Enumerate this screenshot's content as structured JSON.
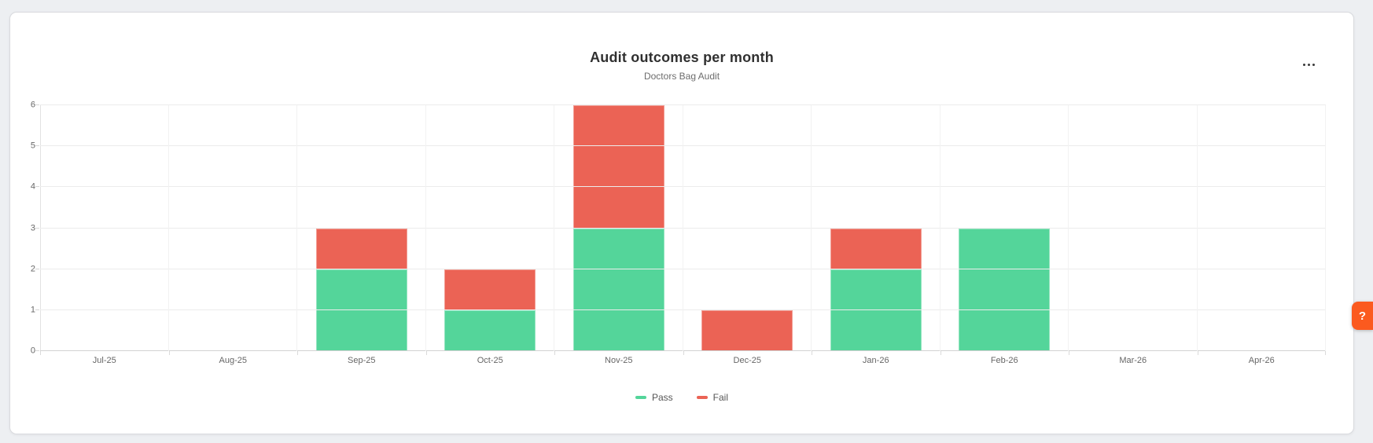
{
  "card": {
    "menu_icon": "ellipsis-horizontal-icon"
  },
  "help_button": {
    "label": "?",
    "color": "#fb5a1f"
  },
  "chart_data": {
    "type": "bar",
    "stacked": true,
    "title": "Audit outcomes per month",
    "subtitle": "Doctors Bag Audit",
    "categories": [
      "Jul-25",
      "Aug-25",
      "Sep-25",
      "Oct-25",
      "Nov-25",
      "Dec-25",
      "Jan-26",
      "Feb-26",
      "Mar-26",
      "Apr-26"
    ],
    "series": [
      {
        "name": "Pass",
        "color": "#54d59a",
        "values": [
          0,
          0,
          2,
          1,
          3,
          0,
          2,
          3,
          0,
          0
        ]
      },
      {
        "name": "Fail",
        "color": "#eb6355",
        "values": [
          0,
          0,
          1,
          1,
          3,
          1,
          1,
          0,
          0,
          0
        ]
      }
    ],
    "xlabel": "",
    "ylabel": "",
    "ylim": [
      0,
      6
    ],
    "yticks": [
      0,
      1,
      2,
      3,
      4,
      5,
      6
    ],
    "grid": true,
    "legend_position": "bottom"
  }
}
